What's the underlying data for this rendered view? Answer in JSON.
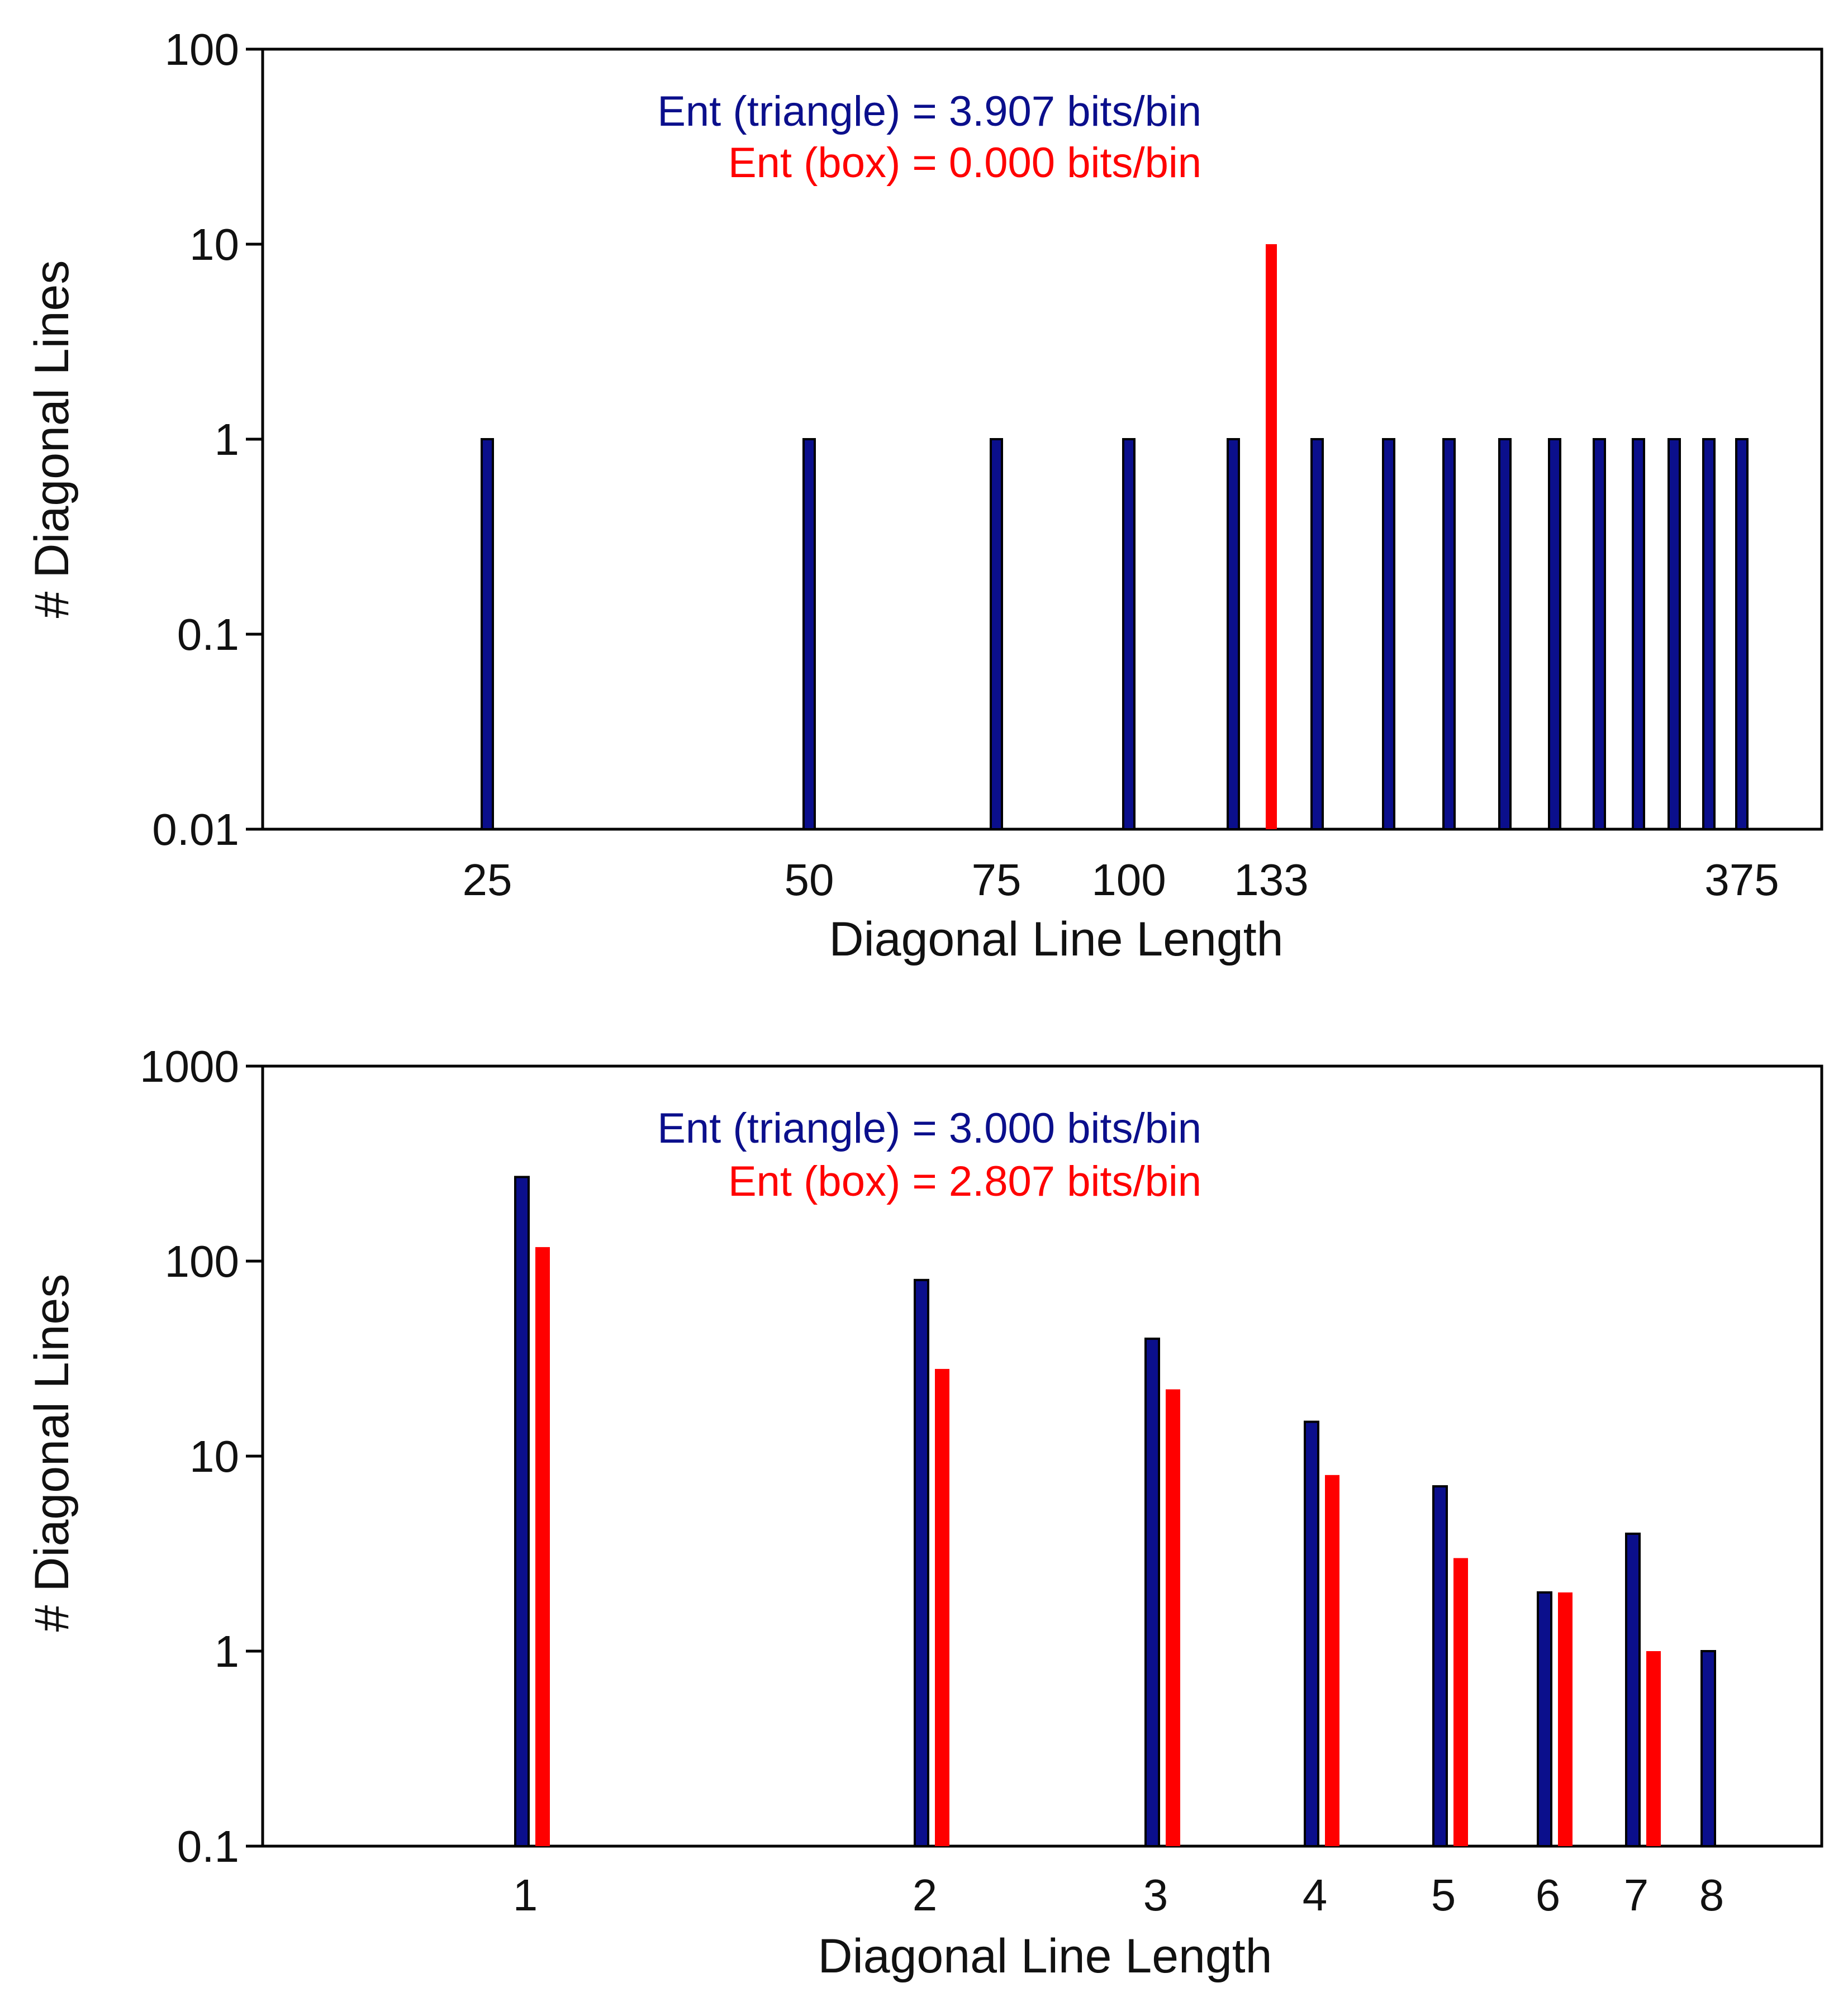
{
  "colors": {
    "triangle": "#0b0f8c",
    "triangle_edge": "#000000",
    "box": "#ff0000",
    "axis": "#000000"
  },
  "chart_data": [
    {
      "type": "bar",
      "scale_y": "log",
      "xlabel": "Diagonal Line Length",
      "ylabel": "# Diagonal Lines",
      "ylim": [
        0.01,
        100
      ],
      "y_ticks": [
        "0.01",
        "0.1",
        "1",
        "10",
        "100"
      ],
      "x_ticks": [
        {
          "value": 25,
          "label": "25"
        },
        {
          "value": 50,
          "label": "50"
        },
        {
          "value": 75,
          "label": "75"
        },
        {
          "value": 100,
          "label": "100"
        },
        {
          "value": 133,
          "label": "133"
        },
        {
          "value": 375,
          "label": "375"
        }
      ],
      "annotations": {
        "triangle": "Ent (triangle) = 3.907 bits/bin",
        "box": "Ent (box) = 0.000 bits/bin"
      },
      "series": [
        {
          "name": "triangle",
          "x": [
            25,
            50,
            75,
            100,
            125,
            150,
            175,
            200,
            225,
            250,
            275,
            300,
            325,
            350,
            375
          ],
          "values": [
            1,
            1,
            1,
            1,
            1,
            1,
            1,
            1,
            1,
            1,
            1,
            1,
            1,
            1,
            1
          ]
        },
        {
          "name": "box",
          "x": [
            133
          ],
          "values": [
            10
          ]
        }
      ]
    },
    {
      "type": "bar",
      "scale_y": "log",
      "xlabel": "Diagonal Line Length",
      "ylabel": "# Diagonal Lines",
      "ylim": [
        0.1,
        1000
      ],
      "y_ticks": [
        "0.1",
        "1",
        "10",
        "100",
        "1000"
      ],
      "categories": [
        "1",
        "2",
        "3",
        "4",
        "5",
        "6",
        "7",
        "8"
      ],
      "annotations": {
        "triangle": "Ent (triangle) = 3.000 bits/bin",
        "box": "Ent (box) = 2.807 bits/bin"
      },
      "series": [
        {
          "name": "triangle",
          "values": [
            270,
            80,
            40,
            15,
            7,
            2,
            4,
            1
          ]
        },
        {
          "name": "box",
          "values": [
            118,
            28,
            22,
            8,
            3,
            2,
            1,
            0
          ]
        }
      ]
    }
  ]
}
